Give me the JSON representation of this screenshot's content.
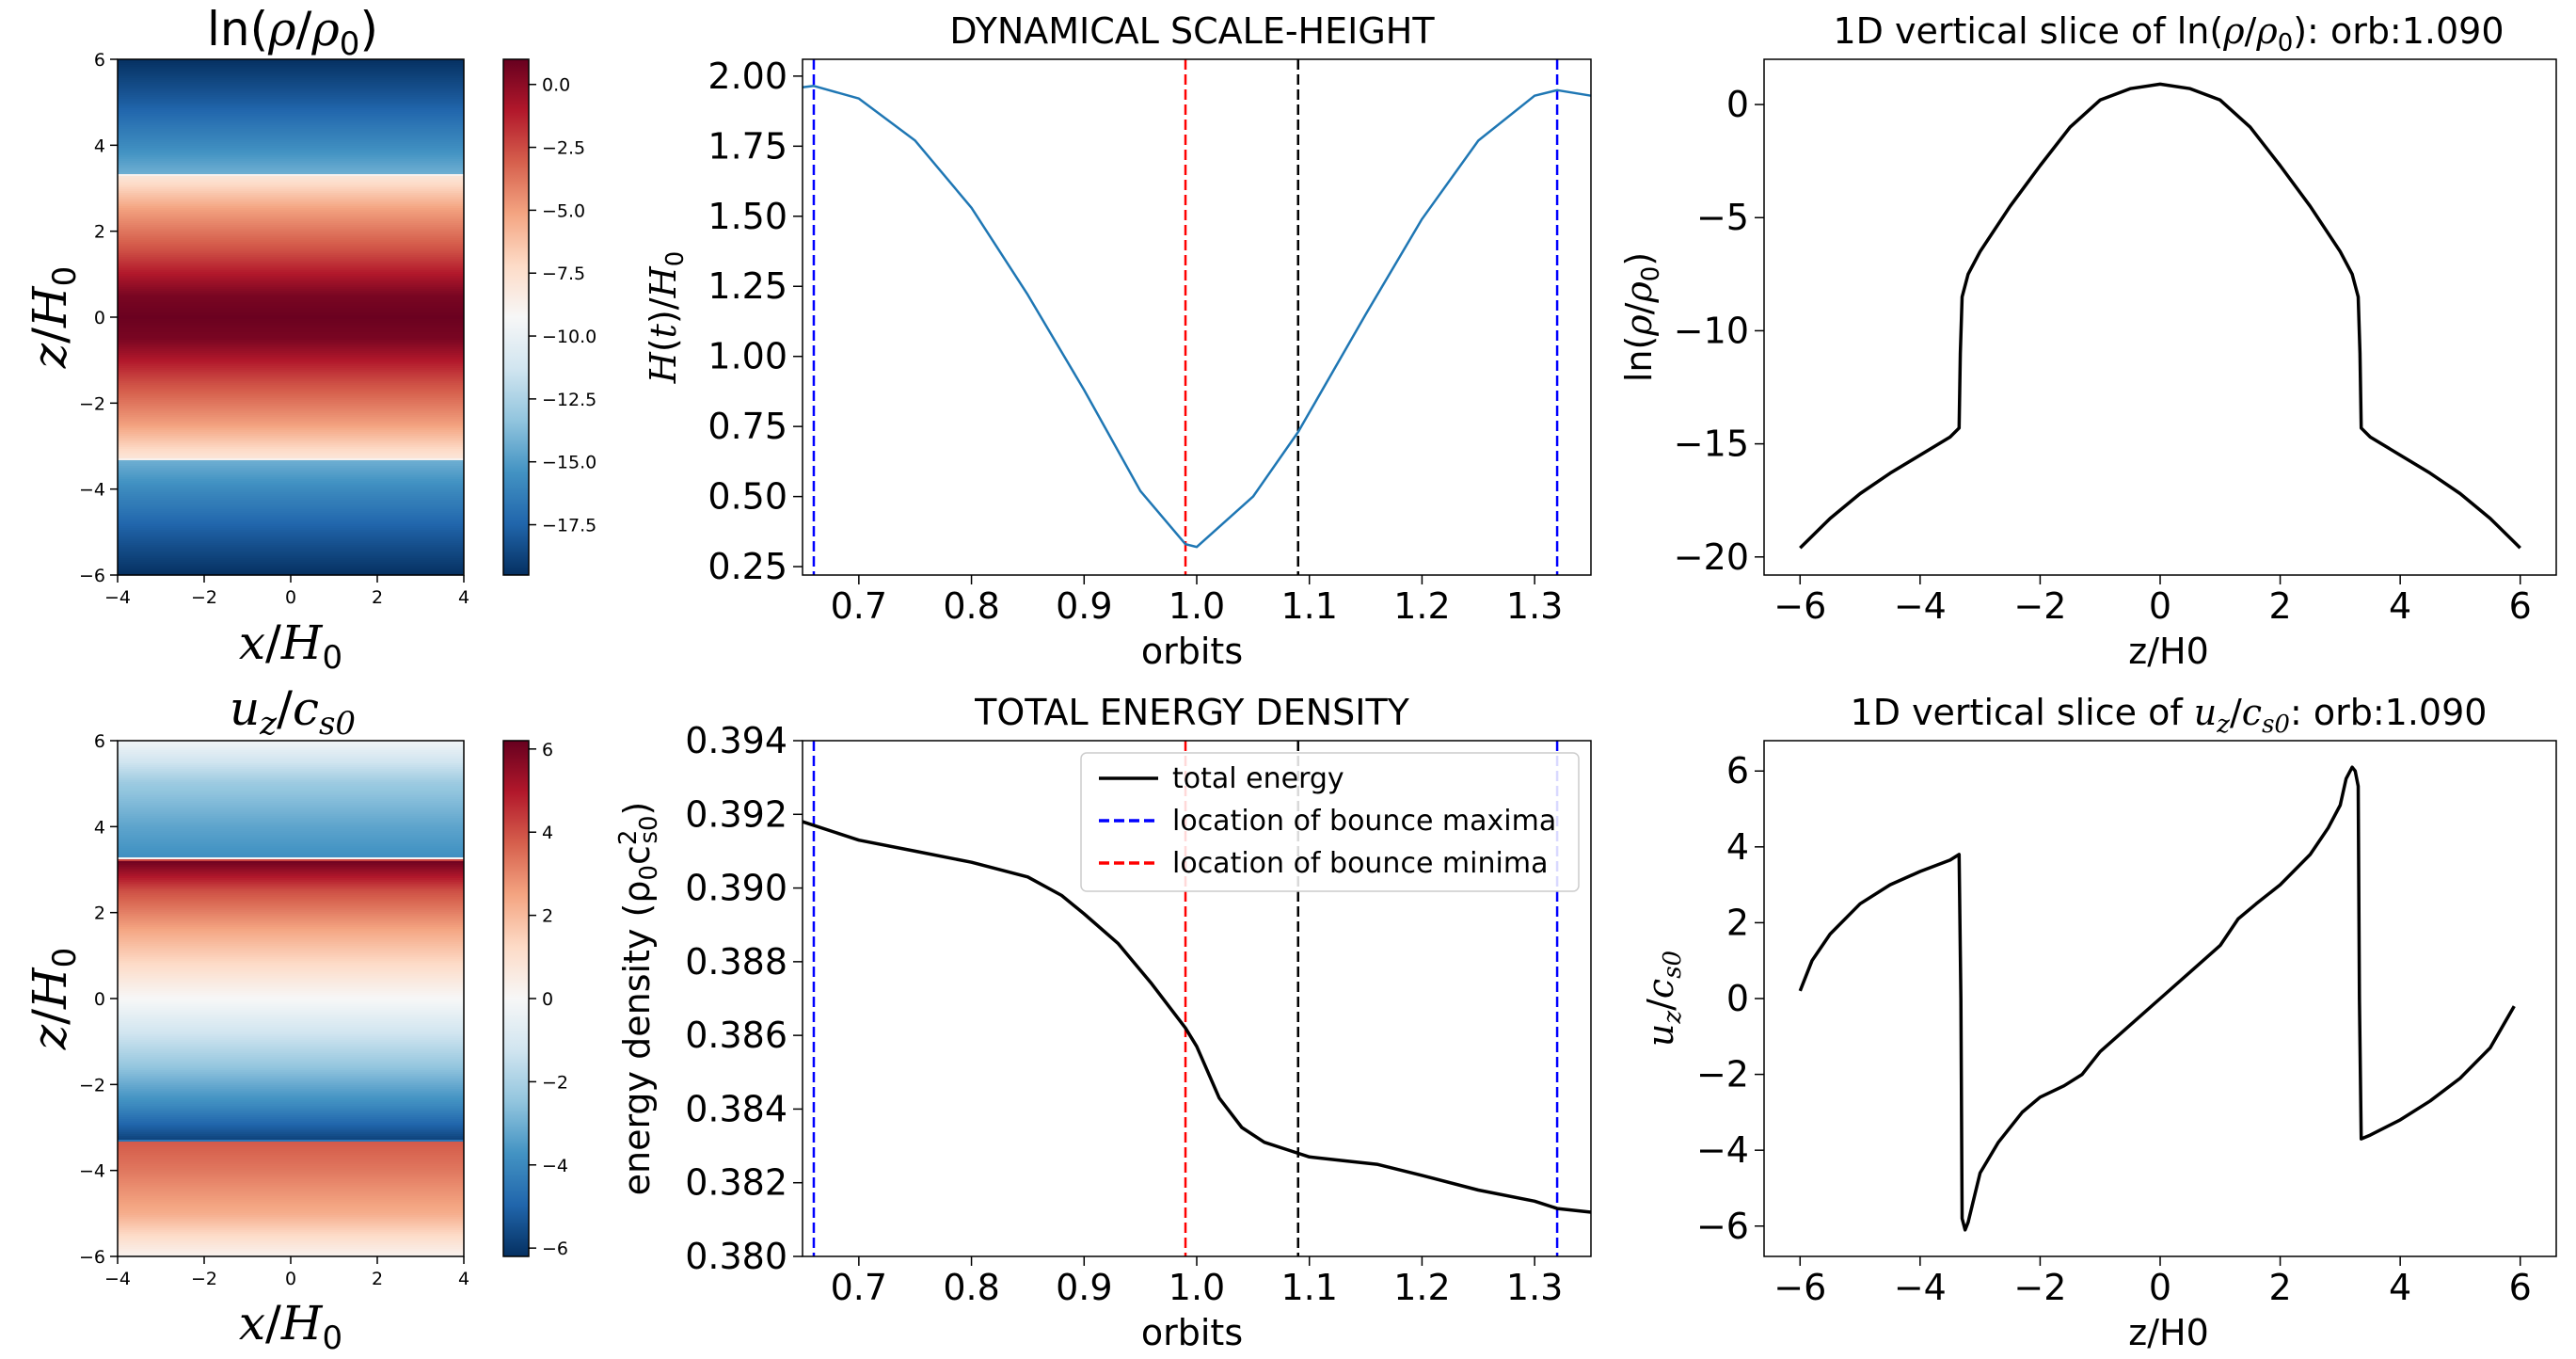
{
  "chart_data": [
    {
      "id": "density_map",
      "type": "heatmap",
      "title": "ln(ρ/ρ₀)",
      "xlabel": "x/H₀",
      "ylabel": "z/H₀",
      "xlim": [
        -4,
        4
      ],
      "ylim": [
        -6,
        6
      ],
      "x_ticks": [
        "−4",
        "−2",
        "0",
        "2",
        "4"
      ],
      "y_ticks": [
        "−6",
        "−4",
        "−2",
        "0",
        "2",
        "4",
        "6"
      ],
      "colormap": "RdBu_r",
      "colorbar": {
        "min": -19.5,
        "max": 1.0,
        "ticks": [
          0.0,
          -2.5,
          -5.0,
          -7.5,
          -10.0,
          -12.5,
          -15.0,
          -17.5
        ],
        "tick_labels": [
          "0.0",
          "−2.5",
          "−5.0",
          "−7.5",
          "−10.0",
          "−12.5",
          "−15.0",
          "−17.5"
        ]
      },
      "z_profile": [
        [
          -6,
          -19.5
        ],
        [
          -5,
          -17.8
        ],
        [
          -4,
          -15.8
        ],
        [
          -3.35,
          -14.3
        ],
        [
          -3.3,
          -8.0
        ],
        [
          -2.5,
          -5.0
        ],
        [
          -1.5,
          -2.5
        ],
        [
          -0.5,
          0.5
        ],
        [
          0,
          0.9
        ],
        [
          0.5,
          0.5
        ],
        [
          1.5,
          -2.5
        ],
        [
          2.5,
          -5.0
        ],
        [
          3.3,
          -8.0
        ],
        [
          3.35,
          -14.3
        ],
        [
          4,
          -15.8
        ],
        [
          5,
          -17.8
        ],
        [
          6,
          -19.5
        ]
      ]
    },
    {
      "id": "velocity_map",
      "type": "heatmap",
      "title": "u_z/c_s0",
      "xlabel": "x/H₀",
      "ylabel": "z/H₀",
      "xlim": [
        -4,
        4
      ],
      "ylim": [
        -6,
        6
      ],
      "x_ticks": [
        "−4",
        "−2",
        "0",
        "2",
        "4"
      ],
      "y_ticks": [
        "−6",
        "−4",
        "−2",
        "0",
        "2",
        "4",
        "6"
      ],
      "colormap": "RdBu_r",
      "colorbar": {
        "min": -6.2,
        "max": 6.2,
        "ticks": [
          6,
          4,
          2,
          0,
          -2,
          -4,
          -6
        ],
        "tick_labels": [
          "6",
          "4",
          "2",
          "0",
          "−2",
          "−4",
          "−6"
        ]
      },
      "z_profile": [
        [
          -6,
          0.2
        ],
        [
          -5,
          2.3
        ],
        [
          -4,
          3.3
        ],
        [
          -3.35,
          3.8
        ],
        [
          -3.3,
          -5.8
        ],
        [
          -2.5,
          -4.0
        ],
        [
          -1.5,
          -2.3
        ],
        [
          0,
          0
        ],
        [
          1.5,
          2.3
        ],
        [
          2.5,
          4.0
        ],
        [
          3.2,
          6.1
        ],
        [
          3.3,
          -3.8
        ],
        [
          4,
          -3.3
        ],
        [
          5,
          -2.3
        ],
        [
          6,
          -0.2
        ]
      ]
    },
    {
      "id": "scale_height",
      "type": "line",
      "title": "DYNAMICAL SCALE-HEIGHT",
      "xlabel": "orbits",
      "ylabel": "H(t)/H₀",
      "xlim": [
        0.65,
        1.35
      ],
      "ylim": [
        0.22,
        2.06
      ],
      "x_ticks": [
        "0.7",
        "0.8",
        "0.9",
        "1.0",
        "1.1",
        "1.2",
        "1.3"
      ],
      "y_ticks": [
        "0.25",
        "0.50",
        "0.75",
        "1.00",
        "1.25",
        "1.50",
        "1.75",
        "2.00"
      ],
      "series": [
        {
          "color": "#1f77b4",
          "x": [
            0.65,
            0.66,
            0.7,
            0.75,
            0.8,
            0.85,
            0.9,
            0.95,
            0.99,
            1.0,
            1.05,
            1.09,
            1.1,
            1.15,
            1.2,
            1.25,
            1.3,
            1.32,
            1.35
          ],
          "y": [
            1.96,
            1.965,
            1.92,
            1.77,
            1.53,
            1.22,
            0.88,
            0.52,
            0.33,
            0.32,
            0.5,
            0.73,
            0.8,
            1.15,
            1.49,
            1.77,
            1.93,
            1.95,
            1.93
          ]
        }
      ],
      "vlines": [
        {
          "x": 0.66,
          "color": "#0000ff"
        },
        {
          "x": 1.32,
          "color": "#0000ff"
        },
        {
          "x": 0.99,
          "color": "#ff0000"
        },
        {
          "x": 1.09,
          "color": "#000000"
        }
      ]
    },
    {
      "id": "energy",
      "type": "line",
      "title": "TOTAL ENERGY DENSITY",
      "xlabel": "orbits",
      "ylabel": "energy density  (ρ₀c²s0)",
      "xlim": [
        0.65,
        1.35
      ],
      "ylim": [
        0.38,
        0.394
      ],
      "x_ticks": [
        "0.7",
        "0.8",
        "0.9",
        "1.0",
        "1.1",
        "1.2",
        "1.3"
      ],
      "y_ticks": [
        "0.380",
        "0.382",
        "0.384",
        "0.386",
        "0.388",
        "0.390",
        "0.392",
        "0.394"
      ],
      "series": [
        {
          "name": "total energy",
          "color": "#000000",
          "x": [
            0.65,
            0.7,
            0.75,
            0.8,
            0.85,
            0.88,
            0.9,
            0.93,
            0.96,
            0.99,
            1.0,
            1.02,
            1.04,
            1.06,
            1.08,
            1.1,
            1.13,
            1.16,
            1.2,
            1.25,
            1.3,
            1.32,
            1.35
          ],
          "y": [
            0.3918,
            0.3913,
            0.391,
            0.3907,
            0.3903,
            0.3898,
            0.3893,
            0.3885,
            0.3874,
            0.3862,
            0.3857,
            0.3843,
            0.3835,
            0.3831,
            0.3829,
            0.3827,
            0.3826,
            0.3825,
            0.3822,
            0.3818,
            0.3815,
            0.3813,
            0.3812
          ]
        }
      ],
      "vlines": [
        {
          "x": 0.66,
          "color": "#0000ff"
        },
        {
          "x": 1.32,
          "color": "#0000ff"
        },
        {
          "x": 0.99,
          "color": "#ff0000"
        },
        {
          "x": 1.09,
          "color": "#000000"
        }
      ],
      "legend": {
        "placement": "top-right",
        "entries": [
          {
            "label": "total energy",
            "color": "#000000",
            "style": "solid"
          },
          {
            "label": "location of bounce maxima",
            "color": "#0000ff",
            "style": "dashed"
          },
          {
            "label": "location of bounce minima",
            "color": "#ff0000",
            "style": "dashed"
          }
        ]
      }
    },
    {
      "id": "density_slice",
      "type": "line",
      "title": "1D vertical slice of ln(ρ/ρ₀): orb:1.090",
      "xlabel": "z/H0",
      "ylabel": "ln(ρ/ρ₀)",
      "xlim": [
        -6.6,
        6.6
      ],
      "ylim": [
        -20.8,
        2.0
      ],
      "x_ticks": [
        "−6",
        "−4",
        "−2",
        "0",
        "2",
        "4",
        "6"
      ],
      "y_ticks": [
        "0",
        "−5",
        "−10",
        "−15",
        "−20"
      ],
      "series": [
        {
          "color": "#000000",
          "x": [
            -6,
            -5.5,
            -5,
            -4.5,
            -4,
            -3.5,
            -3.35,
            -3.33,
            -3.3,
            -3.2,
            -3.0,
            -2.5,
            -2.0,
            -1.5,
            -1.0,
            -0.5,
            0,
            0.5,
            1.0,
            1.5,
            2.0,
            2.5,
            3.0,
            3.2,
            3.3,
            3.33,
            3.35,
            3.5,
            4,
            4.5,
            5,
            5.5,
            6
          ],
          "y": [
            -19.6,
            -18.3,
            -17.2,
            -16.3,
            -15.5,
            -14.7,
            -14.3,
            -11.0,
            -8.5,
            -7.5,
            -6.5,
            -4.5,
            -2.7,
            -1.0,
            0.2,
            0.7,
            0.9,
            0.7,
            0.2,
            -1.0,
            -2.7,
            -4.5,
            -6.5,
            -7.5,
            -8.5,
            -11.0,
            -14.3,
            -14.7,
            -15.5,
            -16.3,
            -17.2,
            -18.3,
            -19.6
          ]
        }
      ]
    },
    {
      "id": "velocity_slice",
      "type": "line",
      "title": "1D vertical slice of u_z/c_s0: orb:1.090",
      "xlabel": "z/H0",
      "ylabel": "u_z/c_s0",
      "xlim": [
        -6.6,
        6.6
      ],
      "ylim": [
        -6.8,
        6.8
      ],
      "x_ticks": [
        "−6",
        "−4",
        "−2",
        "0",
        "2",
        "4",
        "6"
      ],
      "y_ticks": [
        "6",
        "4",
        "2",
        "0",
        "−2",
        "−4",
        "−6"
      ],
      "series": [
        {
          "color": "#000000",
          "x": [
            -6,
            -5.8,
            -5.5,
            -5,
            -4.5,
            -4,
            -3.5,
            -3.35,
            -3.32,
            -3.3,
            -3.25,
            -3.2,
            -3.0,
            -2.7,
            -2.3,
            -2.0,
            -1.6,
            -1.3,
            -1.0,
            -0.5,
            0,
            0.5,
            1.0,
            1.3,
            1.6,
            2.0,
            2.5,
            2.8,
            3.0,
            3.1,
            3.2,
            3.25,
            3.3,
            3.32,
            3.35,
            3.5,
            4,
            4.5,
            5,
            5.5,
            5.9
          ],
          "y": [
            0.2,
            1.0,
            1.7,
            2.5,
            3.0,
            3.35,
            3.65,
            3.8,
            0.0,
            -5.8,
            -6.1,
            -5.9,
            -4.6,
            -3.8,
            -3.0,
            -2.6,
            -2.3,
            -2.0,
            -1.4,
            -0.7,
            0.0,
            0.7,
            1.4,
            2.1,
            2.5,
            3.0,
            3.8,
            4.5,
            5.1,
            5.8,
            6.1,
            6.0,
            5.6,
            0.0,
            -3.7,
            -3.6,
            -3.2,
            -2.7,
            -2.1,
            -1.3,
            -0.2
          ]
        }
      ]
    }
  ]
}
